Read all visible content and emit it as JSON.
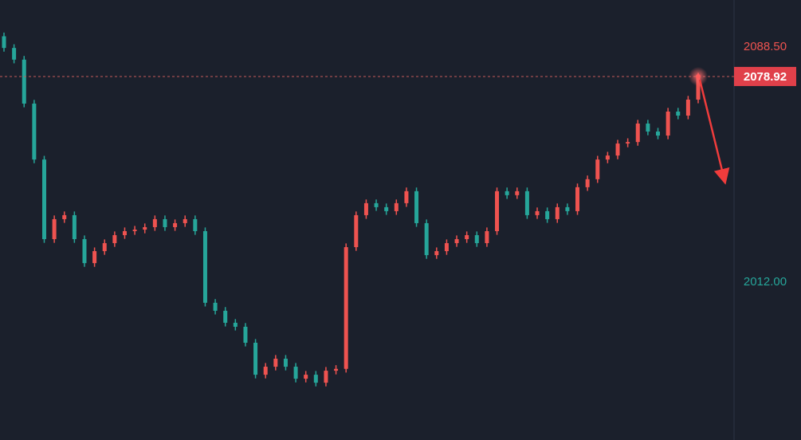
{
  "chart_data": {
    "type": "candlestick",
    "up_color": "#ef5350",
    "down_color": "#26a69a",
    "ylim": [
      1960.66,
      2103.8
    ],
    "yticks": [
      {
        "value": 2088.5,
        "label": "2088.50"
      },
      {
        "value": 2012,
        "label": "2012.00"
      }
    ],
    "last_price": 2078.92,
    "open": [
      2092.0,
      2088.2,
      2084.4,
      2070.1,
      2051.9,
      2026.0,
      2032.5,
      2033.8,
      2026.0,
      2018.2,
      2022.1,
      2024.7,
      2027.3,
      2028.6,
      2029.1,
      2029.9,
      2032.5,
      2029.9,
      2031.2,
      2032.5,
      2028.6,
      2005.3,
      2002.7,
      1998.8,
      1997.5,
      1992.3,
      1981.9,
      1984.5,
      1987.1,
      1984.5,
      1980.6,
      1981.9,
      1979.3,
      1983.2,
      1983.8,
      2023.4,
      2033.8,
      2037.7,
      2036.4,
      2035.1,
      2037.7,
      2041.6,
      2031.2,
      2020.8,
      2022.1,
      2024.7,
      2026.0,
      2027.3,
      2024.7,
      2028.6,
      2041.6,
      2040.3,
      2041.6,
      2033.8,
      2035.1,
      2032.5,
      2036.4,
      2035.1,
      2042.9,
      2045.5,
      2051.9,
      2053.2,
      2057.1,
      2057.6,
      2063.6,
      2061.0,
      2059.7,
      2067.5,
      2066.2,
      2071.4
    ],
    "high": [
      2093.2,
      2089.4,
      2085.6,
      2071.3,
      2053.1,
      2033.7,
      2035.0,
      2035.0,
      2027.2,
      2023.3,
      2025.9,
      2028.5,
      2029.8,
      2030.3,
      2031.1,
      2033.7,
      2033.7,
      2032.4,
      2033.7,
      2033.7,
      2029.8,
      2006.5,
      2003.9,
      2000.0,
      1998.7,
      1993.5,
      1985.7,
      1988.3,
      1988.3,
      1985.7,
      1983.1,
      1983.1,
      1984.4,
      1985.0,
      2024.6,
      2035.0,
      2038.9,
      2038.9,
      2037.6,
      2038.9,
      2042.8,
      2042.8,
      2032.4,
      2023.3,
      2025.9,
      2027.2,
      2028.5,
      2028.5,
      2029.8,
      2042.8,
      2042.8,
      2042.8,
      2042.8,
      2036.3,
      2036.3,
      2037.6,
      2037.6,
      2044.1,
      2046.7,
      2053.1,
      2054.4,
      2058.3,
      2058.8,
      2064.8,
      2064.8,
      2062.2,
      2068.7,
      2068.7,
      2072.6,
      2080.1
    ],
    "low": [
      2087.0,
      2083.2,
      2068.9,
      2050.7,
      2024.8,
      2024.8,
      2031.3,
      2024.8,
      2017.0,
      2017.0,
      2020.9,
      2023.5,
      2026.1,
      2027.4,
      2027.9,
      2028.7,
      2028.7,
      2028.7,
      2030.0,
      2027.4,
      2004.1,
      2001.5,
      1997.6,
      1996.3,
      1991.1,
      1980.7,
      1980.7,
      1983.3,
      1983.3,
      1979.4,
      1979.4,
      1978.1,
      1978.1,
      1982.0,
      1982.6,
      2022.2,
      2032.6,
      2035.2,
      2033.9,
      2033.9,
      2036.5,
      2030.0,
      2019.6,
      2019.6,
      2020.9,
      2023.5,
      2024.8,
      2023.5,
      2023.5,
      2027.4,
      2039.1,
      2039.1,
      2032.6,
      2032.6,
      2031.3,
      2031.3,
      2033.9,
      2033.9,
      2041.7,
      2044.3,
      2050.7,
      2052.0,
      2055.9,
      2056.4,
      2059.8,
      2058.5,
      2058.5,
      2065.0,
      2065.0,
      2070.2
    ],
    "close": [
      2088.2,
      2084.4,
      2070.1,
      2051.9,
      2026.0,
      2032.5,
      2033.8,
      2026.0,
      2018.2,
      2022.1,
      2024.7,
      2027.3,
      2028.6,
      2029.1,
      2029.9,
      2032.5,
      2029.9,
      2031.2,
      2032.5,
      2028.6,
      2005.3,
      2002.7,
      1998.8,
      1997.5,
      1992.3,
      1981.9,
      1984.5,
      1987.1,
      1984.5,
      1980.6,
      1981.9,
      1979.3,
      1983.2,
      1983.8,
      2023.4,
      2033.8,
      2037.7,
      2036.4,
      2035.1,
      2037.7,
      2041.6,
      2031.2,
      2020.8,
      2022.1,
      2024.7,
      2026.0,
      2027.3,
      2024.7,
      2028.6,
      2041.6,
      2040.3,
      2041.6,
      2033.8,
      2035.1,
      2032.5,
      2036.4,
      2035.1,
      2042.9,
      2045.5,
      2051.9,
      2053.2,
      2057.1,
      2057.6,
      2063.6,
      2061.0,
      2059.7,
      2067.5,
      2066.2,
      2071.4,
      2078.92
    ]
  }
}
